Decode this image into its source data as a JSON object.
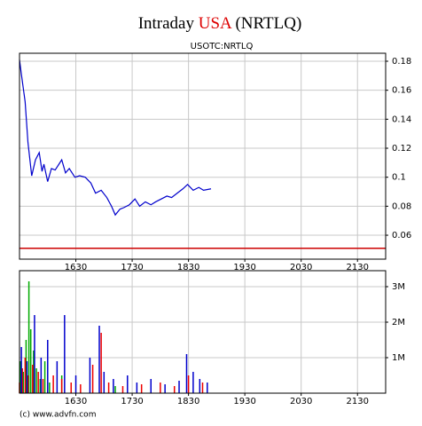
{
  "title": [
    "Intraday",
    "USA",
    "(NRTLQ)"
  ],
  "subtitle": "USOTC:NRTLQ",
  "credit": "(c) www.advfn.com",
  "chart_data": [
    {
      "type": "line",
      "series": [
        {
          "color": "#0000cc",
          "x": [
            930,
            932,
            936,
            939,
            943,
            947,
            951,
            954,
            956,
            960,
            964,
            968,
            972,
            975,
            979,
            983,
            989,
            994,
            1000,
            1006,
            1011,
            1017,
            1023,
            1028,
            1032,
            1037,
            1041,
            1047,
            1053,
            1058,
            1064,
            1070,
            1075,
            1081,
            1087,
            1092,
            1098,
            1104,
            1109,
            1115,
            1121,
            1126,
            1134
          ],
          "values": [
            0.181,
            0.171,
            0.152,
            0.124,
            0.101,
            0.112,
            0.117,
            0.104,
            0.109,
            0.097,
            0.106,
            0.105,
            0.109,
            0.112,
            0.103,
            0.106,
            0.1,
            0.101,
            0.1,
            0.096,
            0.089,
            0.091,
            0.086,
            0.08,
            0.074,
            0.078,
            0.079,
            0.081,
            0.085,
            0.08,
            0.083,
            0.081,
            0.083,
            0.085,
            0.087,
            0.086,
            0.089,
            0.092,
            0.095,
            0.091,
            0.093,
            0.091,
            0.092
          ]
        }
      ],
      "reference_line": 0.051,
      "reference_color": "#cc0000",
      "xlim": [
        930,
        1320
      ],
      "xticks": [
        {
          "value": 990,
          "label": "1630"
        },
        {
          "value": 1050,
          "label": "1730"
        },
        {
          "value": 1110,
          "label": "1830"
        },
        {
          "value": 1170,
          "label": "1930"
        },
        {
          "value": 1230,
          "label": "2030"
        },
        {
          "value": 1290,
          "label": "2130"
        }
      ],
      "ylim": [
        0.0435,
        0.1855
      ],
      "yticks": [
        0.06,
        0.08,
        0.1,
        0.12,
        0.14,
        0.16,
        0.18
      ],
      "grid": true
    },
    {
      "type": "bar",
      "series": [
        {
          "color": "#00aa00",
          "x": [
            931,
            934,
            937,
            940,
            942,
            945,
            948,
            952,
            957,
            962,
            975,
            1032
          ],
          "values": [
            900000,
            600000,
            1500000,
            3150000,
            1800000,
            1200000,
            700000,
            400000,
            900000,
            300000,
            500000,
            200000
          ]
        },
        {
          "color": "#ee0000",
          "x": [
            930,
            933,
            936,
            939,
            944,
            950,
            955,
            960,
            966,
            975,
            985,
            995,
            1008,
            1017,
            1025,
            1040,
            1060,
            1080,
            1095,
            1110,
            1125
          ],
          "values": [
            300000,
            700000,
            1000000,
            500000,
            800000,
            600000,
            400000,
            300000,
            500000,
            400000,
            300000,
            250000,
            800000,
            1700000,
            300000,
            200000,
            250000,
            300000,
            200000,
            500000,
            300000
          ]
        },
        {
          "color": "#0000cc",
          "x": [
            932,
            938,
            946,
            953,
            960,
            970,
            978,
            990,
            1005,
            1015,
            1020,
            1030,
            1045,
            1055,
            1070,
            1085,
            1100,
            1108,
            1115,
            1122,
            1130
          ],
          "values": [
            1300000,
            900000,
            2200000,
            1000000,
            1500000,
            900000,
            2200000,
            500000,
            1000000,
            1900000,
            600000,
            400000,
            500000,
            300000,
            400000,
            250000,
            350000,
            1100000,
            600000,
            400000,
            300000
          ]
        }
      ],
      "xlim": [
        930,
        1320
      ],
      "xticks": [
        {
          "value": 990,
          "label": "1630"
        },
        {
          "value": 1050,
          "label": "1730"
        },
        {
          "value": 1110,
          "label": "1830"
        },
        {
          "value": 1170,
          "label": "1930"
        },
        {
          "value": 1230,
          "label": "2030"
        },
        {
          "value": 1290,
          "label": "2130"
        }
      ],
      "ylim": [
        0,
        3450000
      ],
      "yticks": [
        {
          "value": 1000000,
          "label": "1M"
        },
        {
          "value": 2000000,
          "label": "2M"
        },
        {
          "value": 3000000,
          "label": "3M"
        }
      ],
      "grid": true
    }
  ]
}
